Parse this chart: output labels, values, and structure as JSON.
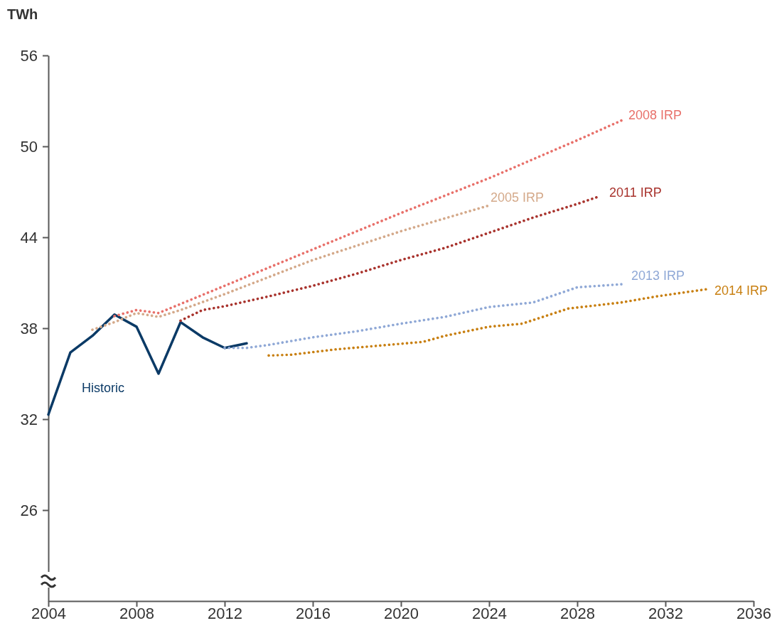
{
  "chart_data": {
    "type": "line",
    "ylabel": "TWh",
    "xlim": [
      2004,
      2036
    ],
    "xticks": [
      2004,
      2008,
      2012,
      2016,
      2020,
      2024,
      2028,
      2032,
      2036
    ],
    "ylim": [
      20,
      56
    ],
    "yticks": [
      26,
      32,
      38,
      44,
      50,
      56
    ],
    "grid": false,
    "marker": "none",
    "series": [
      {
        "name": "Historic",
        "color": "#0b3a66",
        "line_style": "solid",
        "x": [
          2004,
          2005,
          2006,
          2007,
          2008,
          2009,
          2010,
          2011,
          2012,
          2013
        ],
        "values": [
          32.3,
          36.4,
          37.5,
          38.9,
          38.1,
          35.0,
          38.4,
          37.4,
          36.7,
          37.0
        ]
      },
      {
        "name": "2008 IRP",
        "color": "#e8706a",
        "line_style": "dotted",
        "x": [
          2007,
          2008,
          2009,
          2010,
          2012,
          2016,
          2020,
          2024,
          2028,
          2030
        ],
        "values": [
          38.8,
          39.2,
          39.0,
          39.6,
          40.8,
          43.2,
          45.6,
          47.9,
          50.4,
          51.7
        ]
      },
      {
        "name": "2005 IRP",
        "color": "#d4a98a",
        "line_style": "dotted",
        "x": [
          2006,
          2007,
          2008,
          2009,
          2010,
          2012,
          2016,
          2020,
          2024
        ],
        "values": [
          37.9,
          38.4,
          39.0,
          38.75,
          39.2,
          40.25,
          42.5,
          44.4,
          46.1
        ]
      },
      {
        "name": "2011 IRP",
        "color": "#a8322c",
        "line_style": "dotted",
        "x": [
          2010,
          2011,
          2012,
          2014,
          2016,
          2018,
          2020,
          2022,
          2024,
          2026,
          2028,
          2029
        ],
        "values": [
          38.5,
          39.2,
          39.45,
          40.1,
          40.8,
          41.6,
          42.5,
          43.3,
          44.3,
          45.3,
          46.2,
          46.7
        ]
      },
      {
        "name": "2013 IRP",
        "color": "#8fa8d6",
        "line_style": "dotted",
        "x": [
          2012,
          2013,
          2014,
          2016,
          2018,
          2020,
          2022,
          2024,
          2026,
          2028,
          2030
        ],
        "values": [
          36.7,
          36.7,
          36.9,
          37.4,
          37.8,
          38.3,
          38.75,
          39.4,
          39.7,
          40.7,
          40.9
        ]
      },
      {
        "name": "2014 IRP",
        "color": "#c87f10",
        "line_style": "dotted",
        "x": [
          2014,
          2015,
          2017,
          2021,
          2022,
          2024,
          2025.5,
          2027.6,
          2030,
          2031.6,
          2034
        ],
        "values": [
          36.2,
          36.25,
          36.6,
          37.1,
          37.5,
          38.1,
          38.3,
          39.3,
          39.7,
          40.1,
          40.6
        ]
      }
    ]
  }
}
